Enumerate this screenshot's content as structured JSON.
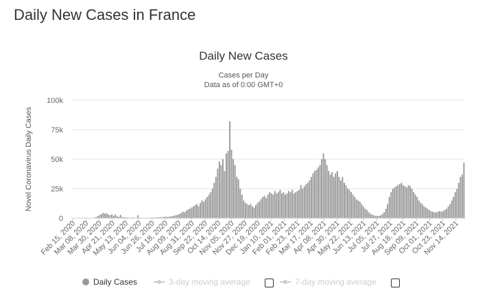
{
  "page": {
    "title": "Daily New Cases in France"
  },
  "chart_data": {
    "type": "bar",
    "title": "Daily New Cases",
    "subtitle_line1": "Cases per Day",
    "subtitle_line2": "Data as of 0:00 GMT+0",
    "ylabel": "Novel Coronavirus Daily Cases",
    "xlabel": "",
    "ylim": [
      0,
      100000
    ],
    "y_ticks": [
      {
        "value": 0,
        "label": "0"
      },
      {
        "value": 25000,
        "label": "25k"
      },
      {
        "value": 50000,
        "label": "50k"
      },
      {
        "value": 75000,
        "label": "75k"
      },
      {
        "value": 100000,
        "label": "100k"
      }
    ],
    "x_ticks": [
      "Feb 15, 2020",
      "Mar 08, 2020",
      "Mar 30, 2020",
      "Apr 21, 2020",
      "May 13, 2020",
      "Jun 04, 2020",
      "Jun 26, 2020",
      "Jul 18, 2020",
      "Aug 09, 2020",
      "Aug 31, 2020",
      "Sep 22, 2020",
      "Oct 14, 2020",
      "Nov 05, 2020",
      "Nov 27, 2020",
      "Dec 19, 2020",
      "Jan 10, 2021",
      "Feb 01, 2021",
      "Feb 23, 2021",
      "Mar 17, 2021",
      "Apr 08, 2021",
      "Apr 30, 2021",
      "May 22, 2021",
      "Jun 13, 2021",
      "Jul 05, 2021",
      "Jul 27, 2021",
      "Aug 18, 2021",
      "Sep 09, 2021",
      "Oct 01, 2021",
      "Oct 23, 2021",
      "Nov 14, 2021"
    ],
    "series": [
      {
        "name": "Daily Cases",
        "color": "#999999",
        "start_date": "2020-02-15",
        "sampling": "every 2 days",
        "values": [
          0,
          0,
          0,
          0,
          0,
          0,
          0,
          0,
          0,
          0,
          0,
          100,
          200,
          500,
          1000,
          1800,
          2800,
          3500,
          4500,
          3800,
          4200,
          3000,
          2500,
          3200,
          2000,
          3000,
          1500,
          1200,
          2800,
          1000,
          800,
          700,
          600,
          500,
          400,
          500,
          400,
          300,
          2500,
          300,
          300,
          400,
          300,
          400,
          300,
          400,
          500,
          500,
          600,
          700,
          800,
          800,
          900,
          1000,
          1200,
          1100,
          1300,
          1500,
          1800,
          2200,
          2500,
          3000,
          3500,
          4500,
          5500,
          5000,
          6500,
          7500,
          8000,
          9000,
          10000,
          11000,
          12000,
          10000,
          13000,
          15000,
          14000,
          16000,
          18000,
          20000,
          22000,
          25000,
          30000,
          35000,
          42000,
          48000,
          45000,
          50000,
          40000,
          55000,
          57000,
          82000,
          58000,
          50000,
          45000,
          35000,
          33000,
          25000,
          20000,
          15000,
          13000,
          12000,
          11000,
          12000,
          10000,
          9000,
          11000,
          13000,
          14000,
          16000,
          18000,
          19000,
          17000,
          20000,
          22000,
          21000,
          20000,
          23000,
          21000,
          22000,
          24000,
          21000,
          22000,
          20000,
          21000,
          23000,
          22000,
          24000,
          21000,
          22000,
          23000,
          24000,
          28000,
          25000,
          27000,
          29000,
          30000,
          32000,
          35000,
          38000,
          40000,
          41000,
          43000,
          45000,
          50000,
          55000,
          50000,
          45000,
          40000,
          37000,
          39000,
          35000,
          38000,
          40000,
          35000,
          32000,
          35000,
          30000,
          28000,
          25000,
          24000,
          22000,
          20000,
          18000,
          16000,
          15000,
          14000,
          12000,
          10000,
          8000,
          7000,
          5000,
          4000,
          3000,
          2500,
          2000,
          2000,
          1800,
          2500,
          3500,
          5000,
          8000,
          12000,
          18000,
          22000,
          25000,
          26000,
          27000,
          28000,
          29000,
          30000,
          28000,
          27000,
          26000,
          28000,
          27000,
          25000,
          22000,
          20000,
          18000,
          15000,
          13000,
          12000,
          10000,
          9000,
          8000,
          7000,
          6000,
          5500,
          5000,
          5000,
          5500,
          6000,
          5500,
          6000,
          7000,
          8000,
          10000,
          12000,
          15000,
          18000,
          22000,
          25000,
          30000,
          35000,
          37000,
          47000
        ]
      }
    ],
    "legend": [
      {
        "label": "Daily Cases",
        "active": true
      },
      {
        "label": "3-day moving average",
        "active": false
      },
      {
        "label": "7-day moving average",
        "active": false
      }
    ],
    "legend_position": "bottom"
  }
}
